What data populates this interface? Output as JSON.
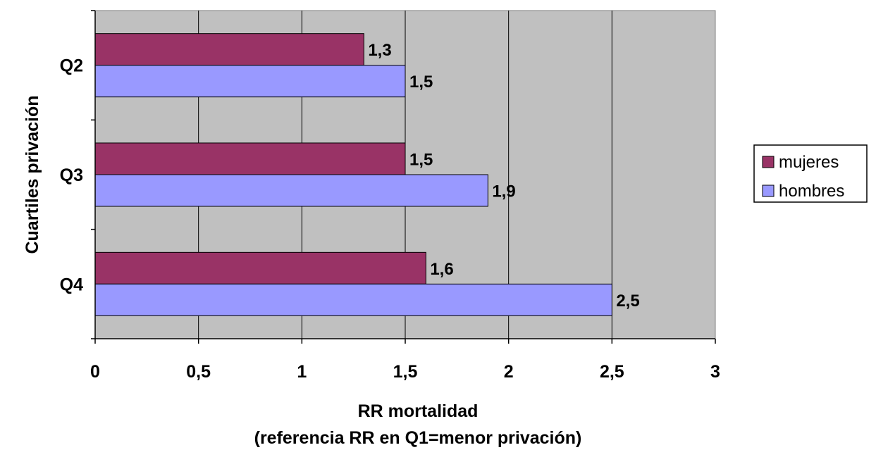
{
  "chart_data": {
    "type": "bar",
    "orientation": "horizontal",
    "categories": [
      "Q2",
      "Q3",
      "Q4"
    ],
    "series": [
      {
        "name": "mujeres",
        "values": [
          1.3,
          1.5,
          1.6
        ],
        "labels": [
          "1,3",
          "1,5",
          "1,6"
        ]
      },
      {
        "name": "hombres",
        "values": [
          1.5,
          1.9,
          2.5
        ],
        "labels": [
          "1,5",
          "1,9",
          "2,5"
        ]
      }
    ],
    "xlabel_line1": "RR mortalidad",
    "xlabel_line2": "(referencia RR en Q1=menor privación)",
    "ylabel": "Cuartiles privación",
    "xlim": [
      0,
      3
    ],
    "xticks": [
      0,
      0.5,
      1,
      1.5,
      2,
      2.5,
      3
    ],
    "xtick_labels": [
      "0",
      "0,5",
      "1",
      "1,5",
      "2",
      "2,5",
      "3"
    ],
    "grid": true,
    "legend_position": "right",
    "colors": {
      "mujeres": "#993366",
      "hombres": "#9999ff",
      "plot_background": "#c0c0c0",
      "gridline": "#000000"
    }
  }
}
